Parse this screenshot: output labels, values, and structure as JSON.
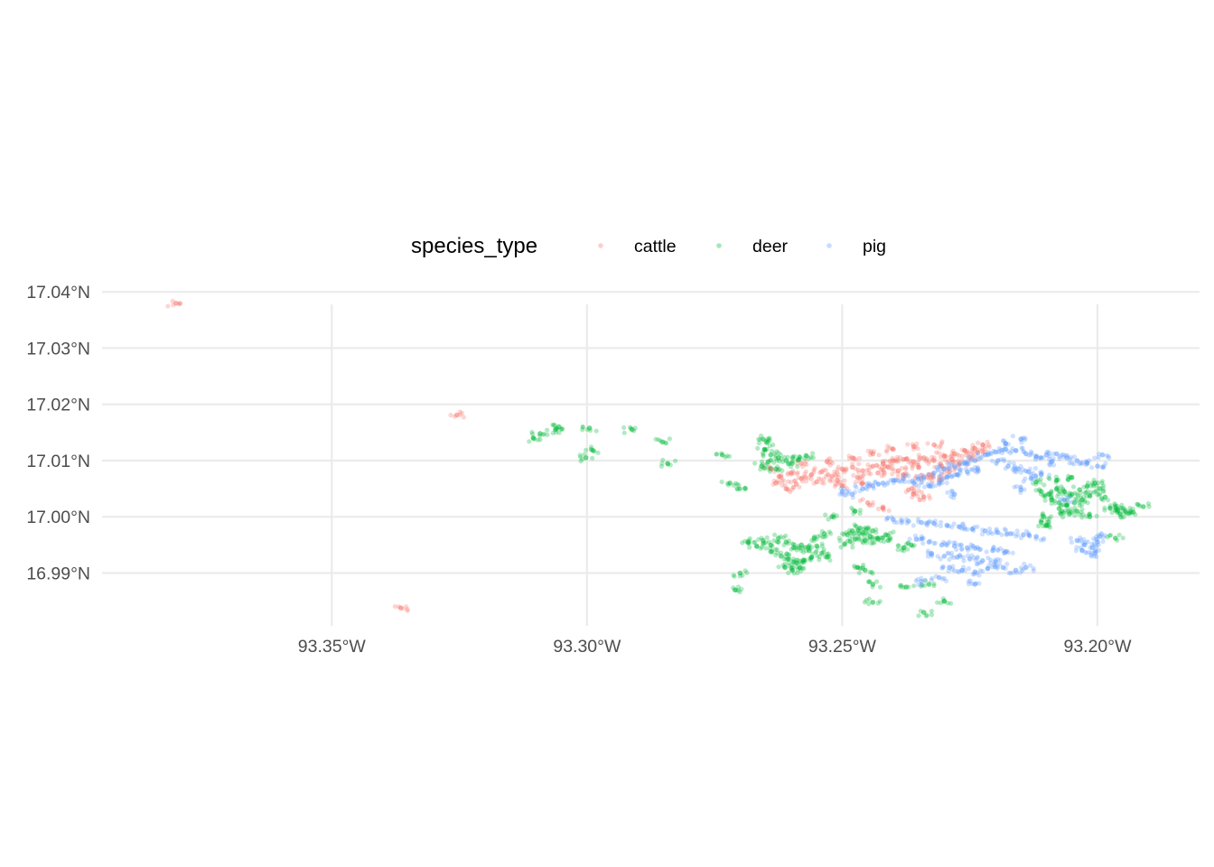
{
  "chart_data": {
    "type": "scatter",
    "title": "",
    "xlabel": "",
    "ylabel": "",
    "xlim": [
      -93.395,
      -93.18
    ],
    "ylim": [
      16.9806,
      17.0418
    ],
    "grid": true,
    "legend": {
      "title": "species_type",
      "position": "top",
      "entries": [
        "cattle",
        "deer",
        "pig"
      ]
    },
    "x_ticks": [
      {
        "value": -93.35,
        "label": "93.35°W"
      },
      {
        "value": -93.3,
        "label": "93.30°W"
      },
      {
        "value": -93.25,
        "label": "93.25°W"
      },
      {
        "value": -93.2,
        "label": "93.20°W"
      }
    ],
    "y_ticks": [
      {
        "value": 16.99,
        "label": "16.99°N"
      },
      {
        "value": 17.0,
        "label": "17.00°N"
      },
      {
        "value": 17.01,
        "label": "17.01°N"
      },
      {
        "value": 17.02,
        "label": "17.02°N"
      },
      {
        "value": 17.03,
        "label": "17.03°N"
      },
      {
        "value": 17.04,
        "label": "17.04°N"
      }
    ],
    "series": [
      {
        "name": "cattle",
        "color": "#F8766D",
        "points": [
          [
            -93.3805,
            17.038
          ],
          [
            -93.3255,
            17.0181
          ],
          [
            -93.3365,
            16.9838
          ],
          [
            -93.264,
            17.0085
          ],
          [
            -93.262,
            17.007
          ],
          [
            -93.26,
            17.0078
          ],
          [
            -93.258,
            17.0068
          ],
          [
            -93.256,
            17.0075
          ],
          [
            -93.254,
            17.008
          ],
          [
            -93.252,
            17.0072
          ],
          [
            -93.25,
            17.0085
          ],
          [
            -93.248,
            17.0088
          ],
          [
            -93.246,
            17.0082
          ],
          [
            -93.244,
            17.009
          ],
          [
            -93.242,
            17.0095
          ],
          [
            -93.24,
            17.01
          ],
          [
            -93.238,
            17.0102
          ],
          [
            -93.236,
            17.0098
          ],
          [
            -93.234,
            17.0105
          ],
          [
            -93.232,
            17.01
          ],
          [
            -93.23,
            17.0108
          ],
          [
            -93.228,
            17.0112
          ],
          [
            -93.226,
            17.0118
          ],
          [
            -93.224,
            17.0122
          ],
          [
            -93.2225,
            17.0128
          ],
          [
            -93.263,
            17.006
          ],
          [
            -93.259,
            17.0058
          ],
          [
            -93.255,
            17.0062
          ],
          [
            -93.251,
            17.0065
          ],
          [
            -93.247,
            17.007
          ],
          [
            -93.243,
            17.0078
          ],
          [
            -93.239,
            17.0082
          ],
          [
            -93.235,
            17.0088
          ],
          [
            -93.233,
            17.0075
          ],
          [
            -93.231,
            17.0065
          ],
          [
            -93.229,
            17.008
          ],
          [
            -93.236,
            17.004
          ],
          [
            -93.234,
            17.0035
          ],
          [
            -93.237,
            17.0048
          ],
          [
            -93.245,
            17.0025
          ],
          [
            -93.242,
            17.0015
          ],
          [
            -93.248,
            17.0105
          ],
          [
            -93.244,
            17.0112
          ],
          [
            -93.24,
            17.012
          ],
          [
            -93.236,
            17.0125
          ],
          [
            -93.232,
            17.0128
          ],
          [
            -93.258,
            17.0095
          ],
          [
            -93.253,
            17.0098
          ],
          [
            -93.261,
            17.005
          ],
          [
            -93.25,
            17.0055
          ],
          [
            -93.246,
            17.006
          ],
          [
            -93.227,
            17.0095
          ],
          [
            -93.225,
            17.0105
          ],
          [
            -93.2235,
            17.0115
          ],
          [
            -93.241,
            17.0088
          ],
          [
            -93.238,
            17.0075
          ],
          [
            -93.2345,
            17.0068
          ],
          [
            -93.2305,
            17.009
          ],
          [
            -93.2285,
            17.0102
          ]
        ]
      },
      {
        "name": "deer",
        "color": "#00BA38",
        "points": [
          [
            -93.3055,
            17.016
          ],
          [
            -93.3062,
            17.0155
          ],
          [
            -93.3105,
            17.014
          ],
          [
            -93.3092,
            17.0148
          ],
          [
            -93.2995,
            17.0158
          ],
          [
            -93.2988,
            17.0118
          ],
          [
            -93.3002,
            17.0105
          ],
          [
            -93.2912,
            17.0155
          ],
          [
            -93.2852,
            17.0133
          ],
          [
            -93.2842,
            17.0095
          ],
          [
            -93.2735,
            17.011
          ],
          [
            -93.272,
            17.006
          ],
          [
            -93.269,
            17.005
          ],
          [
            -93.2655,
            17.0138
          ],
          [
            -93.2648,
            17.0132
          ],
          [
            -93.2652,
            17.012
          ],
          [
            -93.264,
            17.011
          ],
          [
            -93.2625,
            17.0105
          ],
          [
            -93.261,
            17.01
          ],
          [
            -93.2598,
            17.0095
          ],
          [
            -93.2585,
            17.0102
          ],
          [
            -93.257,
            17.0108
          ],
          [
            -93.2645,
            17.0098
          ],
          [
            -93.2658,
            17.009
          ],
          [
            -93.263,
            17.0085
          ],
          [
            -93.2655,
            16.9958
          ],
          [
            -93.264,
            16.995
          ],
          [
            -93.2625,
            16.9962
          ],
          [
            -93.261,
            16.9955
          ],
          [
            -93.2595,
            16.9945
          ],
          [
            -93.258,
            16.995
          ],
          [
            -93.2565,
            16.994
          ],
          [
            -93.255,
            16.9948
          ],
          [
            -93.262,
            16.993
          ],
          [
            -93.2605,
            16.9925
          ],
          [
            -93.259,
            16.9918
          ],
          [
            -93.2575,
            16.9922
          ],
          [
            -93.256,
            16.9928
          ],
          [
            -93.2612,
            16.991
          ],
          [
            -93.2598,
            16.9905
          ],
          [
            -93.2583,
            16.991
          ],
          [
            -93.264,
            16.9938
          ],
          [
            -93.2668,
            16.9948
          ],
          [
            -93.2685,
            16.9955
          ],
          [
            -93.27,
            16.99
          ],
          [
            -93.271,
            16.987
          ],
          [
            -93.2555,
            16.9962
          ],
          [
            -93.254,
            16.9935
          ],
          [
            -93.253,
            16.9928
          ],
          [
            -93.249,
            16.9968
          ],
          [
            -93.2475,
            16.996
          ],
          [
            -93.246,
            16.9972
          ],
          [
            -93.2445,
            16.9965
          ],
          [
            -93.243,
            16.996
          ],
          [
            -93.2415,
            16.9968
          ],
          [
            -93.248,
            16.9975
          ],
          [
            -93.2455,
            16.9958
          ],
          [
            -93.2495,
            16.9952
          ],
          [
            -93.244,
            16.9975
          ],
          [
            -93.2465,
            16.998
          ],
          [
            -93.241,
            16.9958
          ],
          [
            -93.238,
            16.9945
          ],
          [
            -93.2365,
            16.995
          ],
          [
            -93.2455,
            16.9905
          ],
          [
            -93.247,
            16.991
          ],
          [
            -93.244,
            16.988
          ],
          [
            -93.2375,
            16.9875
          ],
          [
            -93.233,
            16.988
          ],
          [
            -93.23,
            16.985
          ],
          [
            -93.234,
            16.983
          ],
          [
            -93.244,
            16.9848
          ],
          [
            -93.2475,
            17.001
          ],
          [
            -93.252,
            17.0
          ],
          [
            -93.2535,
            16.997
          ],
          [
            -93.211,
            17.0045
          ],
          [
            -93.2095,
            17.004
          ],
          [
            -93.208,
            17.005
          ],
          [
            -93.2065,
            17.0045
          ],
          [
            -93.205,
            17.004
          ],
          [
            -93.2035,
            17.0048
          ],
          [
            -93.202,
            17.0055
          ],
          [
            -93.2005,
            17.006
          ],
          [
            -93.209,
            17.003
          ],
          [
            -93.2075,
            17.0025
          ],
          [
            -93.206,
            17.002
          ],
          [
            -93.2045,
            17.0025
          ],
          [
            -93.203,
            17.003
          ],
          [
            -93.2015,
            17.0038
          ],
          [
            -93.207,
            17.001
          ],
          [
            -93.2055,
            17.0005
          ],
          [
            -93.204,
            17.001
          ],
          [
            -93.208,
            17.0065
          ],
          [
            -93.205,
            17.007
          ],
          [
            -93.2105,
            17.0
          ],
          [
            -93.211,
            16.999
          ],
          [
            -93.21,
            16.9985
          ],
          [
            -93.212,
            17.0062
          ],
          [
            -93.1995,
            17.005
          ],
          [
            -93.1985,
            17.0035
          ],
          [
            -93.1975,
            17.0015
          ],
          [
            -93.196,
            17.0012
          ],
          [
            -93.1945,
            17.001
          ],
          [
            -93.193,
            17.0008
          ],
          [
            -93.1955,
            17.0005
          ],
          [
            -93.1965,
            17.0018
          ],
          [
            -93.191,
            17.0018
          ],
          [
            -93.1965,
            16.9962
          ],
          [
            -93.2015,
            17.0
          ]
        ]
      },
      {
        "name": "pig",
        "color": "#619CFF",
        "points": [
          [
            -93.25,
            17.0045
          ],
          [
            -93.248,
            17.004
          ],
          [
            -93.246,
            17.005
          ],
          [
            -93.244,
            17.0055
          ],
          [
            -93.242,
            17.006
          ],
          [
            -93.24,
            17.0065
          ],
          [
            -93.238,
            17.0068
          ],
          [
            -93.236,
            17.006
          ],
          [
            -93.234,
            17.007
          ],
          [
            -93.232,
            17.0078
          ],
          [
            -93.23,
            17.0085
          ],
          [
            -93.228,
            17.009
          ],
          [
            -93.226,
            17.0095
          ],
          [
            -93.224,
            17.01
          ],
          [
            -93.2295,
            17.007
          ],
          [
            -93.2275,
            17.0075
          ],
          [
            -93.2255,
            17.008
          ],
          [
            -93.2235,
            17.0085
          ],
          [
            -93.231,
            17.006
          ],
          [
            -93.233,
            17.0055
          ],
          [
            -93.222,
            17.011
          ],
          [
            -93.22,
            17.0115
          ],
          [
            -93.218,
            17.012
          ],
          [
            -93.216,
            17.0118
          ],
          [
            -93.214,
            17.0112
          ],
          [
            -93.212,
            17.0108
          ],
          [
            -93.21,
            17.011
          ],
          [
            -93.208,
            17.0112
          ],
          [
            -93.206,
            17.0105
          ],
          [
            -93.204,
            17.01
          ],
          [
            -93.202,
            17.0095
          ],
          [
            -93.2,
            17.009
          ],
          [
            -93.199,
            17.011
          ],
          [
            -93.2195,
            17.01
          ],
          [
            -93.2175,
            17.009
          ],
          [
            -93.2155,
            17.0085
          ],
          [
            -93.2135,
            17.008
          ],
          [
            -93.211,
            17.0075
          ],
          [
            -93.213,
            17.0068
          ],
          [
            -93.218,
            17.013
          ],
          [
            -93.215,
            17.0138
          ],
          [
            -93.209,
            17.0098
          ],
          [
            -93.228,
            17.004
          ],
          [
            -93.24,
            16.9995
          ],
          [
            -93.237,
            16.9992
          ],
          [
            -93.2345,
            16.999
          ],
          [
            -93.232,
            16.9988
          ],
          [
            -93.2295,
            16.9985
          ],
          [
            -93.227,
            16.9982
          ],
          [
            -93.2245,
            16.9978
          ],
          [
            -93.222,
            16.9975
          ],
          [
            -93.2195,
            16.9972
          ],
          [
            -93.217,
            16.997
          ],
          [
            -93.2145,
            16.9968
          ],
          [
            -93.212,
            16.9965
          ],
          [
            -93.2355,
            16.996
          ],
          [
            -93.233,
            16.9955
          ],
          [
            -93.2305,
            16.995
          ],
          [
            -93.228,
            16.9948
          ],
          [
            -93.2255,
            16.9945
          ],
          [
            -93.223,
            16.9942
          ],
          [
            -93.2205,
            16.994
          ],
          [
            -93.218,
            16.9938
          ],
          [
            -93.2325,
            16.9935
          ],
          [
            -93.23,
            16.993
          ],
          [
            -93.2275,
            16.9928
          ],
          [
            -93.225,
            16.9925
          ],
          [
            -93.2225,
            16.9922
          ],
          [
            -93.22,
            16.992
          ],
          [
            -93.229,
            16.991
          ],
          [
            -93.2265,
            16.9905
          ],
          [
            -93.224,
            16.9902
          ],
          [
            -93.2215,
            16.9908
          ],
          [
            -93.2185,
            16.991
          ],
          [
            -93.216,
            16.9905
          ],
          [
            -93.214,
            16.991
          ],
          [
            -93.2345,
            16.9885
          ],
          [
            -93.231,
            16.9892
          ],
          [
            -93.224,
            16.988
          ],
          [
            -93.204,
            16.9958
          ],
          [
            -93.2025,
            16.995
          ],
          [
            -93.201,
            16.9945
          ],
          [
            -93.2,
            16.9955
          ],
          [
            -93.203,
            16.994
          ],
          [
            -93.1995,
            16.9965
          ],
          [
            -93.2005,
            16.9935
          ],
          [
            -93.2065,
            17.003
          ],
          [
            -93.215,
            17.0048
          ]
        ]
      }
    ]
  }
}
